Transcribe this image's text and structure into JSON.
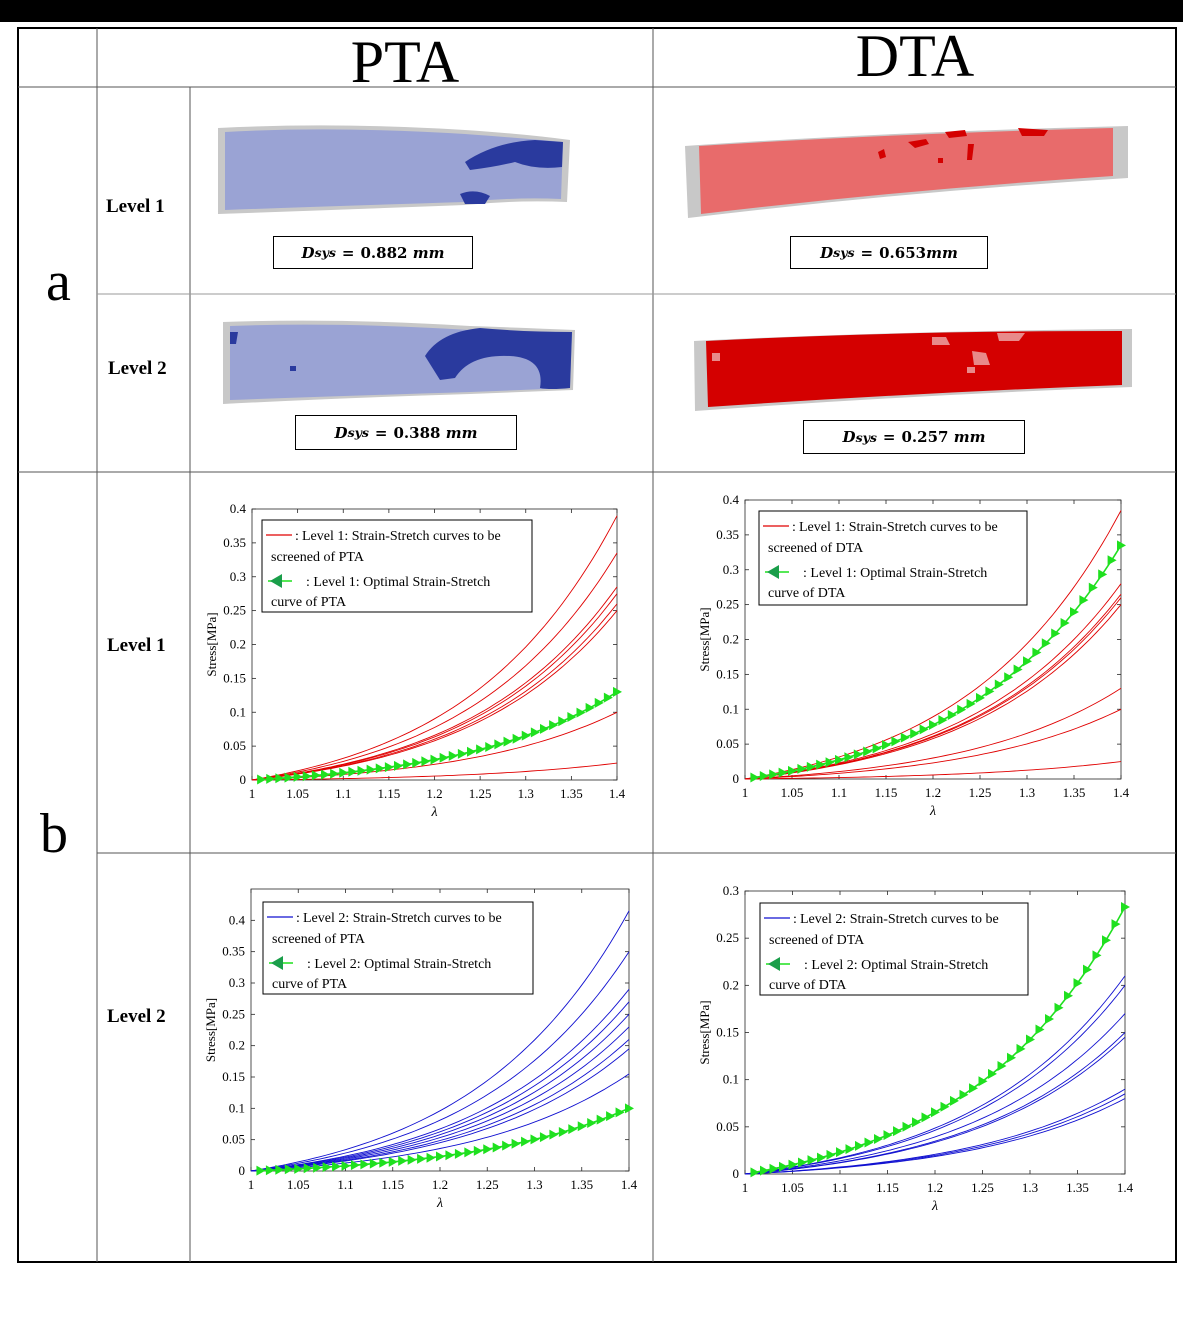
{
  "headers": {
    "col1": "PTA",
    "col2": "DTA"
  },
  "sections": {
    "a": "a",
    "b": "b"
  },
  "levels": {
    "level1": "Level 1",
    "level2": "Level 2"
  },
  "colors": {
    "pta": "#9aa3d4",
    "pta_dark": "#2a3a9e",
    "dta": "#e86b6b",
    "dta_dark": "#d40000",
    "gray": "#c8c8c8",
    "green": "#1fe01f",
    "red_line": "#e00000",
    "blue_line": "#1010d0"
  },
  "deformation": [
    {
      "id": "pta-l1",
      "symbol": "D",
      "sub": "sys",
      "value": "0.882",
      "unit": "mm"
    },
    {
      "id": "dta-l1",
      "symbol": "D",
      "sub": "sys",
      "value": "0.653",
      "unit": "mm"
    },
    {
      "id": "pta-l2",
      "symbol": "D",
      "sub": "sys",
      "value": "0.388",
      "unit": "mm"
    },
    {
      "id": "dta-l2",
      "symbol": "D",
      "sub": "sys",
      "value": "0.257",
      "unit": "mm"
    }
  ],
  "chart_data": [
    {
      "id": "pta-level1",
      "type": "line",
      "xlabel": "λ",
      "ylabel": "Stress[MPa]",
      "xlim": [
        1,
        1.4
      ],
      "ylim": [
        0,
        0.4
      ],
      "xticks": [
        "1",
        "1.05",
        "1.1",
        "1.15",
        "1.2",
        "1.25",
        "1.3",
        "1.35",
        "1.4"
      ],
      "yticks": [
        "0",
        "0.05",
        "0.1",
        "0.15",
        "0.2",
        "0.25",
        "0.3",
        "0.35",
        "0.4"
      ],
      "legend": [
        "Level 1: Strain-Stretch curves to be",
        "screened of PTA",
        ": Level 1: Optimal Strain-Stretch",
        "curve of PTA"
      ],
      "screen_color": "#e00000",
      "screen_endpoints": [
        0.39,
        0.335,
        0.285,
        0.275,
        0.26,
        0.25,
        0.1,
        0.025
      ],
      "optimal_endpoint": 0.13
    },
    {
      "id": "dta-level1",
      "type": "line",
      "xlabel": "λ",
      "ylabel": "Stress[MPa]",
      "xlim": [
        1,
        1.4
      ],
      "ylim": [
        0,
        0.4
      ],
      "xticks": [
        "1",
        "1.05",
        "1.1",
        "1.15",
        "1.2",
        "1.25",
        "1.3",
        "1.35",
        "1.4"
      ],
      "yticks": [
        "0",
        "0.05",
        "0.1",
        "0.15",
        "0.2",
        "0.25",
        "0.3",
        "0.35",
        "0.4"
      ],
      "legend": [
        "Level 1: Strain-Stretch curves to be",
        "screened of DTA",
        ": Level 1: Optimal Strain-Stretch",
        "curve of DTA"
      ],
      "screen_color": "#e00000",
      "screen_endpoints": [
        0.385,
        0.28,
        0.265,
        0.26,
        0.25,
        0.13,
        0.1,
        0.025
      ],
      "optimal_endpoint": 0.335
    },
    {
      "id": "pta-level2",
      "type": "line",
      "xlabel": "λ",
      "ylabel": "Stress[MPa]",
      "xlim": [
        1,
        1.4
      ],
      "ylim": [
        0,
        0.45
      ],
      "xticks": [
        "1",
        "1.05",
        "1.1",
        "1.15",
        "1.2",
        "1.25",
        "1.3",
        "1.35",
        "1.4"
      ],
      "yticks": [
        "0",
        "0.05",
        "0.1",
        "0.15",
        "0.2",
        "0.25",
        "0.3",
        "0.35",
        "0.4"
      ],
      "legend": [
        "Level 2: Strain-Stretch curves to be",
        "screened of PTA",
        ": Level 2: Optimal Strain-Stretch",
        "curve of PTA"
      ],
      "screen_color": "#1010d0",
      "screen_endpoints": [
        0.415,
        0.35,
        0.29,
        0.27,
        0.25,
        0.23,
        0.21,
        0.195,
        0.155
      ],
      "optimal_endpoint": 0.1
    },
    {
      "id": "dta-level2",
      "type": "line",
      "xlabel": "λ",
      "ylabel": "Stress[MPa]",
      "xlim": [
        1,
        1.4
      ],
      "ylim": [
        0,
        0.3
      ],
      "xticks": [
        "1",
        "1.05",
        "1.1",
        "1.15",
        "1.2",
        "1.25",
        "1.3",
        "1.35",
        "1.4"
      ],
      "yticks": [
        "0",
        "0.05",
        "0.1",
        "0.15",
        "0.2",
        "0.25",
        "0.3"
      ],
      "legend": [
        "Level 2: Strain-Stretch curves to be",
        "screened of DTA",
        ": Level 2: Optimal Strain-Stretch",
        "curve of DTA"
      ],
      "screen_color": "#1010d0",
      "screen_endpoints": [
        0.21,
        0.2,
        0.17,
        0.15,
        0.145,
        0.09,
        0.085,
        0.08
      ],
      "optimal_endpoint": 0.283
    }
  ]
}
